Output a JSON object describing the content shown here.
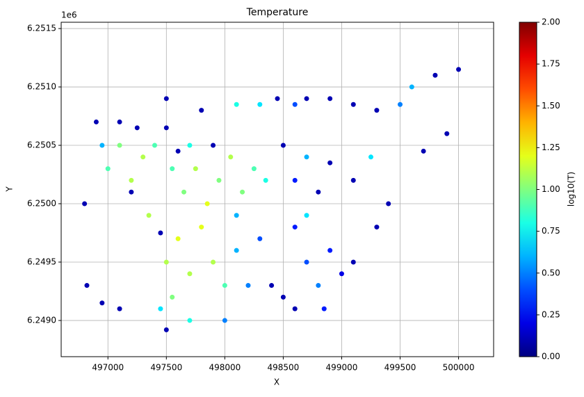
{
  "chart_data": {
    "type": "scatter",
    "title": "Temperature",
    "x_label": "X",
    "y_label": "Y",
    "y_offset_text": "1e6",
    "colorbar_label": "log10(T)",
    "colormap": "jet",
    "grid": true,
    "xlim": [
      496600,
      500300
    ],
    "ylim": [
      6248690,
      6251554
    ],
    "xticks": [
      497000,
      497500,
      498000,
      498500,
      499000,
      499500,
      500000
    ],
    "yticks": [
      {
        "value": 6249000,
        "label": "6.2490"
      },
      {
        "value": 6249500,
        "label": "6.2495"
      },
      {
        "value": 6250000,
        "label": "6.2500"
      },
      {
        "value": 6250500,
        "label": "6.2505"
      },
      {
        "value": 6251000,
        "label": "6.2510"
      },
      {
        "value": 6251500,
        "label": "6.2515"
      }
    ],
    "clim": [
      0,
      2
    ],
    "cticks": [
      {
        "value": 0,
        "label": "0.00"
      },
      {
        "value": 0.25,
        "label": "0.25"
      },
      {
        "value": 0.5,
        "label": "0.50"
      },
      {
        "value": 0.75,
        "label": "0.75"
      },
      {
        "value": 1,
        "label": "1.00"
      },
      {
        "value": 1.25,
        "label": "1.25"
      },
      {
        "value": 1.5,
        "label": "1.50"
      },
      {
        "value": 1.75,
        "label": "1.75"
      },
      {
        "value": 2,
        "label": "2.00"
      }
    ],
    "x": [
      496900,
      496950,
      497000,
      497100,
      497200,
      497300,
      497400,
      497250,
      497500,
      497600,
      497350,
      497200,
      496800,
      496820,
      496950,
      497100,
      497500,
      497550,
      497600,
      497700,
      497800,
      497900,
      498000,
      497650,
      497750,
      497850,
      497950,
      498050,
      498150,
      498250,
      498350,
      497450,
      497700,
      498100,
      498200,
      498300,
      498400,
      498100,
      497900,
      497700,
      497550,
      497450,
      497500,
      498000,
      498600,
      498700,
      498800,
      498900,
      499000,
      499100,
      498500,
      498700,
      498850,
      498600,
      498100,
      498300,
      498450,
      498600,
      498700,
      498900,
      499100,
      499300,
      499500,
      499600,
      499800,
      500000,
      499700,
      499900,
      498700,
      498900,
      499100,
      499250,
      499400,
      499300,
      498800,
      497500,
      497800,
      497100,
      498500,
      498600
    ],
    "y": [
      6250700,
      6250500,
      6250300,
      6250500,
      6250200,
      6250400,
      6250500,
      6250650,
      6250650,
      6250450,
      6249900,
      6250100,
      6250000,
      6249300,
      6249150,
      6249100,
      6249500,
      6249200,
      6249700,
      6249400,
      6249800,
      6249500,
      6249300,
      6250100,
      6250300,
      6250000,
      6250200,
      6250400,
      6250100,
      6250300,
      6250200,
      6249100,
      6249000,
      6249600,
      6249300,
      6249700,
      6249300,
      6249900,
      6250500,
      6250500,
      6250300,
      6249750,
      6248920,
      6249000,
      6249800,
      6249500,
      6249300,
      6249600,
      6249400,
      6249500,
      6249200,
      6249900,
      6249100,
      6249100,
      6250850,
      6250850,
      6250900,
      6250850,
      6250900,
      6250900,
      6250850,
      6250800,
      6250850,
      6251000,
      6251100,
      6251150,
      6250450,
      6250600,
      6250400,
      6250350,
      6250200,
      6250400,
      6250000,
      6249800,
      6250100,
      6250900,
      6250800,
      6250700,
      6250500,
      6250200
    ],
    "c": [
      0.1,
      0.6,
      0.9,
      1.0,
      1.1,
      1.1,
      0.9,
      0.1,
      0.1,
      0.1,
      1.1,
      0.1,
      0.1,
      0.1,
      0.1,
      0.1,
      1.1,
      1.0,
      1.2,
      1.1,
      1.2,
      1.1,
      0.9,
      1.0,
      1.1,
      1.2,
      1.0,
      1.1,
      1.0,
      0.9,
      0.8,
      0.7,
      0.8,
      0.6,
      0.5,
      0.4,
      0.1,
      0.6,
      0.1,
      0.8,
      0.9,
      0.1,
      0.1,
      0.5,
      0.3,
      0.4,
      0.5,
      0.3,
      0.2,
      0.1,
      0.1,
      0.7,
      0.3,
      0.1,
      0.8,
      0.7,
      0.1,
      0.4,
      0.1,
      0.1,
      0.1,
      0.1,
      0.5,
      0.6,
      0.1,
      0.1,
      0.1,
      0.1,
      0.6,
      0.1,
      0.1,
      0.7,
      0.1,
      0.1,
      0.1,
      0.1,
      0.1,
      0.1,
      0.1,
      0.3
    ]
  }
}
